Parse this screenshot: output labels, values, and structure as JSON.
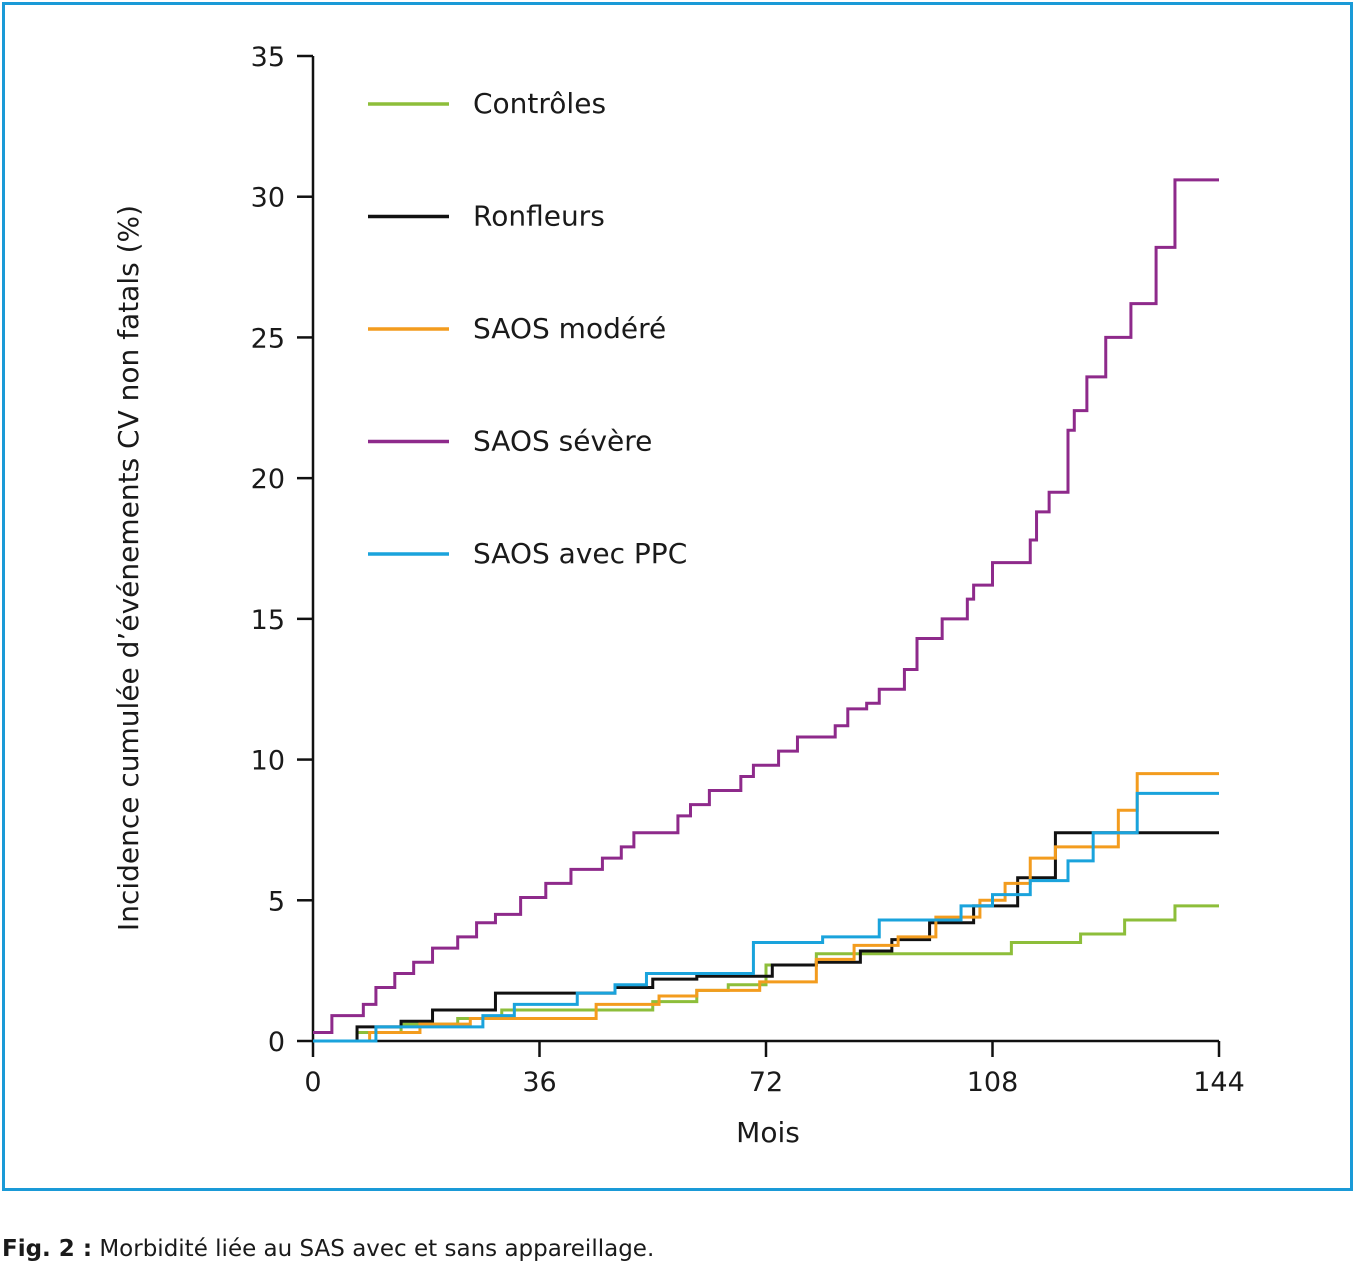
{
  "figure": {
    "caption_label": "Fig. 2 :",
    "caption_text": " Morbidité liée au SAS avec et sans appareillage.",
    "frame_color": "#1a9ad7"
  },
  "chart_data": {
    "type": "line",
    "step": true,
    "xlabel": "Mois",
    "ylabel": "Incidence cumulée d’événements CV non fatals (%)",
    "xlim": [
      0,
      144
    ],
    "ylim": [
      0,
      35
    ],
    "xticks": [
      0,
      36,
      72,
      108,
      144
    ],
    "yticks": [
      0,
      5,
      10,
      15,
      20,
      25,
      30,
      35
    ],
    "grid": false,
    "legend_position": "top-left",
    "series": [
      {
        "name": "Contrôles",
        "color": "#8dbe3a",
        "x": [
          0,
          7,
          14,
          23,
          30,
          45,
          54,
          61,
          66,
          72,
          80,
          88,
          96,
          102,
          111,
          122,
          124,
          129,
          137,
          144
        ],
        "y": [
          0,
          0.3,
          0.6,
          0.8,
          1.1,
          1.1,
          1.4,
          1.8,
          2.0,
          2.7,
          3.1,
          3.1,
          3.1,
          3.1,
          3.5,
          3.8,
          3.8,
          4.3,
          4.8,
          4.8
        ]
      },
      {
        "name": "Ronfleurs",
        "color": "#111111",
        "x": [
          0,
          7,
          14,
          19,
          29,
          37,
          48,
          54,
          61,
          72,
          73,
          80,
          87,
          92,
          98,
          105,
          112,
          118,
          127,
          144
        ],
        "y": [
          0,
          0.5,
          0.7,
          1.1,
          1.7,
          1.7,
          1.9,
          2.2,
          2.3,
          2.3,
          2.7,
          2.8,
          3.2,
          3.6,
          4.2,
          4.8,
          5.8,
          7.4,
          7.4,
          7.4
        ]
      },
      {
        "name": "SAOS modéré",
        "color": "#f39c1e",
        "x": [
          0,
          9,
          17,
          25,
          45,
          55,
          61,
          71,
          80,
          86,
          93,
          99,
          106,
          110,
          114,
          118,
          128,
          131,
          144
        ],
        "y": [
          0,
          0.3,
          0.6,
          0.8,
          1.3,
          1.6,
          1.8,
          2.1,
          2.9,
          3.4,
          3.7,
          4.4,
          5.0,
          5.6,
          6.5,
          6.9,
          8.2,
          9.5,
          9.5
        ]
      },
      {
        "name": "SAOS sévère",
        "color": "#8e2a8b",
        "x": [
          0,
          1,
          3,
          8,
          10,
          13,
          16,
          19,
          23,
          26,
          29,
          33,
          37,
          41,
          46,
          49,
          51,
          55,
          58,
          60,
          63,
          68,
          70,
          74,
          77,
          83,
          85,
          88,
          90,
          94,
          96,
          100,
          104,
          105,
          108,
          110,
          114,
          115,
          117,
          120,
          121,
          123,
          126,
          130,
          131,
          134,
          137,
          144
        ],
        "y": [
          0.3,
          0.3,
          0.9,
          1.3,
          1.9,
          2.4,
          2.8,
          3.3,
          3.7,
          4.2,
          4.5,
          5.1,
          5.6,
          6.1,
          6.5,
          6.9,
          7.4,
          7.4,
          8.0,
          8.4,
          8.9,
          9.4,
          9.8,
          10.3,
          10.8,
          11.2,
          11.8,
          12.0,
          12.5,
          13.2,
          14.3,
          15.0,
          15.7,
          16.2,
          17.0,
          17.0,
          17.8,
          18.8,
          19.5,
          21.7,
          22.4,
          23.6,
          25.0,
          26.2,
          26.2,
          28.2,
          30.6,
          30.6
        ]
      },
      {
        "name": "SAOS avec PPC",
        "color": "#1aa3dc",
        "x": [
          0,
          10,
          27,
          32,
          42,
          48,
          53,
          70,
          81,
          90,
          103,
          108,
          114,
          120,
          124,
          131,
          144
        ],
        "y": [
          0,
          0.5,
          0.9,
          1.3,
          1.7,
          2.0,
          2.4,
          3.5,
          3.7,
          4.3,
          4.8,
          5.2,
          5.7,
          6.4,
          7.4,
          8.8,
          8.8
        ]
      }
    ]
  }
}
